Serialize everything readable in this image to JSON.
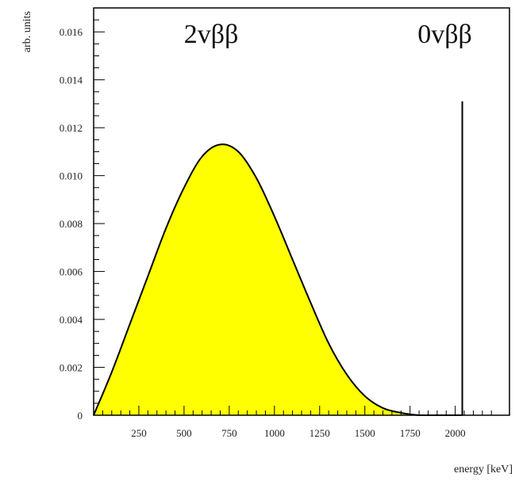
{
  "chart_data": {
    "type": "area",
    "title": "",
    "xlabel": "energy [keV]",
    "ylabel": "arb. units",
    "xlim": [
      0,
      2300
    ],
    "ylim": [
      0,
      0.017
    ],
    "x_ticks": [
      250,
      500,
      750,
      1000,
      1250,
      1500,
      1750,
      2000
    ],
    "x_tick_labels": [
      "250",
      "500",
      "750",
      "1000",
      "1250",
      "1500",
      "1750",
      "2000"
    ],
    "y_ticks": [
      0,
      0.002,
      0.004,
      0.006,
      0.008,
      0.01,
      0.012,
      0.014,
      0.016
    ],
    "y_tick_labels": [
      "0",
      "0.002",
      "0.004",
      "0.006",
      "0.008",
      "0.010",
      "0.012",
      "0.014",
      "0.016"
    ],
    "grid": false,
    "series": [
      {
        "kind": "filled-curve",
        "fill_color": "#ffff00",
        "line_color": "#000000",
        "x": [
          0,
          100,
          200,
          300,
          400,
          500,
          600,
          700,
          800,
          900,
          1000,
          1100,
          1200,
          1300,
          1400,
          1500,
          1600,
          1700,
          1800,
          1900,
          2000,
          2039
        ],
        "y": [
          0,
          0.0018,
          0.0038,
          0.0058,
          0.0078,
          0.0095,
          0.0108,
          0.0113,
          0.011,
          0.0099,
          0.0083,
          0.0065,
          0.0047,
          0.003,
          0.0017,
          0.0008,
          0.0003,
          0.0001,
          0,
          0,
          0,
          0
        ]
      },
      {
        "kind": "spike",
        "line_color": "#000000",
        "x": [
          2039
        ],
        "y": [
          0.0131
        ]
      }
    ],
    "annotations": [
      {
        "text": "2vββ",
        "x": 650,
        "y": 0.0162
      },
      {
        "text": "0vββ",
        "x": 2039,
        "y": 0.0162
      }
    ]
  }
}
